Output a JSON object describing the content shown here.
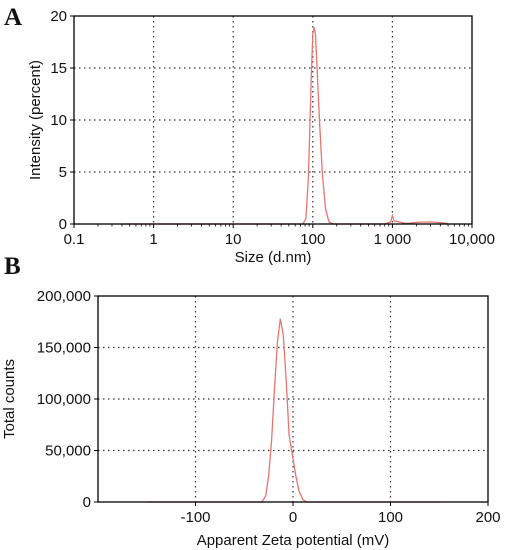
{
  "chart_data": [
    {
      "type": "line",
      "panel_label": "A",
      "xlabel": "Size (d.nm)",
      "ylabel": "Intensity (percent)",
      "xscale": "log",
      "xlim": [
        0.1,
        10000
      ],
      "ylim": [
        0,
        20
      ],
      "x_ticks": [
        0.1,
        1,
        10,
        100,
        1000,
        10000
      ],
      "x_tick_labels": [
        "0.1",
        "1",
        "10",
        "100",
        "1 000",
        "10,000"
      ],
      "y_ticks": [
        0,
        5,
        10,
        15,
        20
      ],
      "y_tick_labels": [
        "0",
        "5",
        "10",
        "15",
        "20"
      ],
      "grid": true,
      "series": [
        {
          "color": "#e8746f",
          "x": [
            0.4,
            1,
            10,
            60,
            75,
            82,
            88,
            92,
            96,
            100,
            104,
            108,
            114,
            122,
            132,
            145,
            160,
            180,
            300,
            800,
            950,
            1000,
            1050,
            1500,
            2000,
            3000,
            4500,
            5000
          ],
          "y": [
            0,
            0,
            0,
            0,
            0,
            0.5,
            4.5,
            9.5,
            14.5,
            18.3,
            18.9,
            18.2,
            14.5,
            9.5,
            4.8,
            1.4,
            0.2,
            0,
            0,
            0,
            0.2,
            0.8,
            0.3,
            0.05,
            0.15,
            0.2,
            0.1,
            0
          ]
        }
      ]
    },
    {
      "type": "line",
      "panel_label": "B",
      "xlabel": "Apparent Zeta potential (mV)",
      "ylabel": "Total counts",
      "xlim": [
        -200,
        200
      ],
      "ylim": [
        0,
        200000
      ],
      "x_ticks": [
        -100,
        0,
        100,
        200
      ],
      "x_tick_labels": [
        "-100",
        "0",
        "100",
        "200"
      ],
      "y_ticks": [
        0,
        50000,
        100000,
        150000,
        200000
      ],
      "y_tick_labels": [
        "0",
        "50,000",
        "100,000",
        "150,000",
        "200,000"
      ],
      "grid": true,
      "series": [
        {
          "color": "#e8746f",
          "x": [
            -150,
            -40,
            -32,
            -28,
            -25,
            -22,
            -19,
            -16,
            -13,
            -10,
            -7,
            -4,
            0,
            3,
            6,
            10,
            14,
            20,
            60,
            150
          ],
          "y": [
            0,
            0,
            0,
            6000,
            25000,
            60000,
            110000,
            155000,
            178000,
            162000,
            118000,
            65000,
            42000,
            25000,
            11000,
            2500,
            0,
            0,
            0,
            0
          ]
        }
      ]
    }
  ]
}
